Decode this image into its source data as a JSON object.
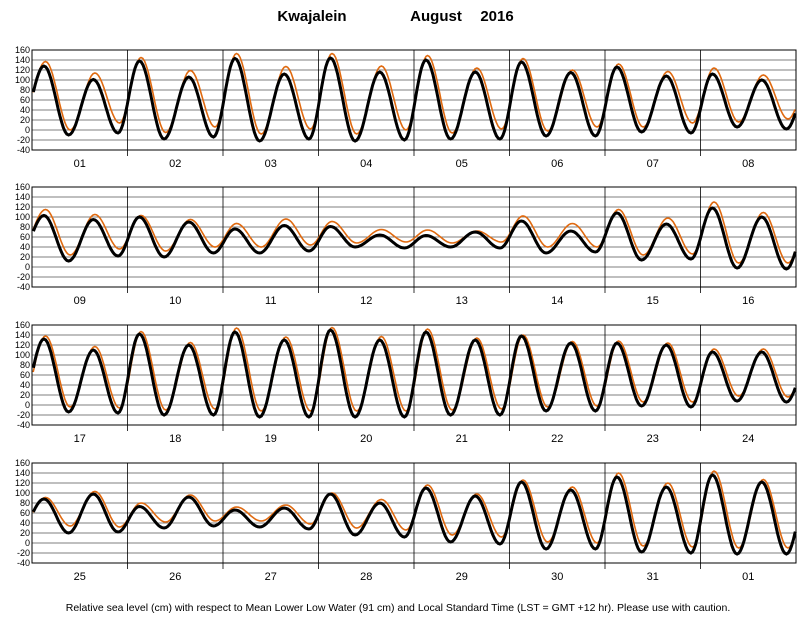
{
  "chart_data": {
    "type": "line",
    "title_station": "Kwajalein",
    "title_month": "August",
    "title_year": "2016",
    "footnote": "Relative sea level (cm) with respect to Mean Lower Low Water (91 cm) and Local Standard Time (LST = GMT +12 hr). Please use with caution.",
    "ylim": [
      -40,
      160
    ],
    "yticks": [
      -40,
      -20,
      0,
      20,
      40,
      60,
      80,
      100,
      120,
      140,
      160
    ],
    "grid": true,
    "series_colors": {
      "observed": "#000000",
      "predicted": "#e06a10"
    },
    "panels": [
      {
        "days": [
          "01",
          "02",
          "03",
          "04",
          "05",
          "06",
          "07",
          "08"
        ],
        "observed": {
          "high1": [
            128,
            138,
            143,
            144,
            140,
            136,
            126,
            112
          ],
          "low1": [
            -10,
            -18,
            -22,
            -22,
            -18,
            -12,
            -4,
            6
          ],
          "high2": [
            101,
            106,
            112,
            116,
            116,
            115,
            108,
            100
          ],
          "low2": [
            -6,
            -14,
            -18,
            -20,
            -18,
            -12,
            -6,
            2
          ]
        },
        "predicted": {
          "high1": [
            137,
            145,
            153,
            153,
            149,
            143,
            132,
            124
          ],
          "low1": [
            0,
            -5,
            -8,
            -8,
            -6,
            -2,
            6,
            16
          ],
          "high2": [
            114,
            119,
            127,
            128,
            124,
            120,
            117,
            110
          ],
          "low2": [
            14,
            6,
            2,
            0,
            2,
            6,
            14,
            22
          ]
        }
      },
      {
        "days": [
          "09",
          "10",
          "11",
          "12",
          "13",
          "14",
          "15",
          "16"
        ],
        "observed": {
          "high1": [
            103,
            100,
            76,
            81,
            63,
            92,
            108,
            118
          ],
          "low1": [
            12,
            20,
            28,
            40,
            40,
            28,
            14,
            -2
          ],
          "high2": [
            95,
            90,
            83,
            64,
            70,
            72,
            86,
            100
          ],
          "low2": [
            22,
            28,
            32,
            38,
            38,
            30,
            16,
            -4
          ]
        },
        "predicted": {
          "high1": [
            115,
            103,
            87,
            91,
            74,
            102,
            115,
            130
          ],
          "low1": [
            24,
            32,
            40,
            48,
            48,
            40,
            24,
            8
          ],
          "high2": [
            105,
            95,
            96,
            75,
            72,
            87,
            98,
            109
          ],
          "low2": [
            36,
            40,
            44,
            50,
            50,
            40,
            26,
            8
          ]
        }
      },
      {
        "days": [
          "17",
          "18",
          "19",
          "20",
          "21",
          "22",
          "23",
          "24"
        ],
        "observed": {
          "high1": [
            132,
            142,
            146,
            150,
            146,
            138,
            124,
            106
          ],
          "low1": [
            -14,
            -20,
            -24,
            -24,
            -20,
            -12,
            -2,
            8
          ],
          "high2": [
            110,
            120,
            130,
            130,
            130,
            124,
            120,
            106
          ],
          "low2": [
            -16,
            -20,
            -24,
            -24,
            -20,
            -12,
            -4,
            6
          ]
        },
        "predicted": {
          "high1": [
            138,
            147,
            154,
            155,
            152,
            140,
            128,
            112
          ],
          "low1": [
            -4,
            -10,
            -12,
            -12,
            -10,
            -4,
            6,
            18
          ],
          "high2": [
            117,
            125,
            136,
            137,
            134,
            127,
            124,
            112
          ],
          "low2": [
            -6,
            -8,
            -12,
            -12,
            -8,
            -2,
            6,
            16
          ]
        }
      },
      {
        "days": [
          "25",
          "26",
          "27",
          "28",
          "29",
          "30",
          "31",
          "01"
        ],
        "observed": {
          "high1": [
            88,
            73,
            66,
            98,
            110,
            122,
            132,
            136
          ],
          "low1": [
            20,
            30,
            32,
            16,
            2,
            -12,
            -18,
            -22
          ],
          "high2": [
            98,
            92,
            70,
            80,
            94,
            106,
            112,
            122
          ],
          "low2": [
            22,
            34,
            28,
            12,
            -2,
            -12,
            -20,
            -22
          ]
        },
        "predicted": {
          "high1": [
            91,
            80,
            72,
            100,
            116,
            126,
            140,
            144
          ],
          "low1": [
            34,
            42,
            44,
            30,
            16,
            2,
            -6,
            -10
          ],
          "high2": [
            103,
            96,
            76,
            87,
            98,
            112,
            120,
            127
          ],
          "low2": [
            32,
            44,
            38,
            26,
            12,
            0,
            -8,
            -10
          ]
        }
      }
    ]
  }
}
